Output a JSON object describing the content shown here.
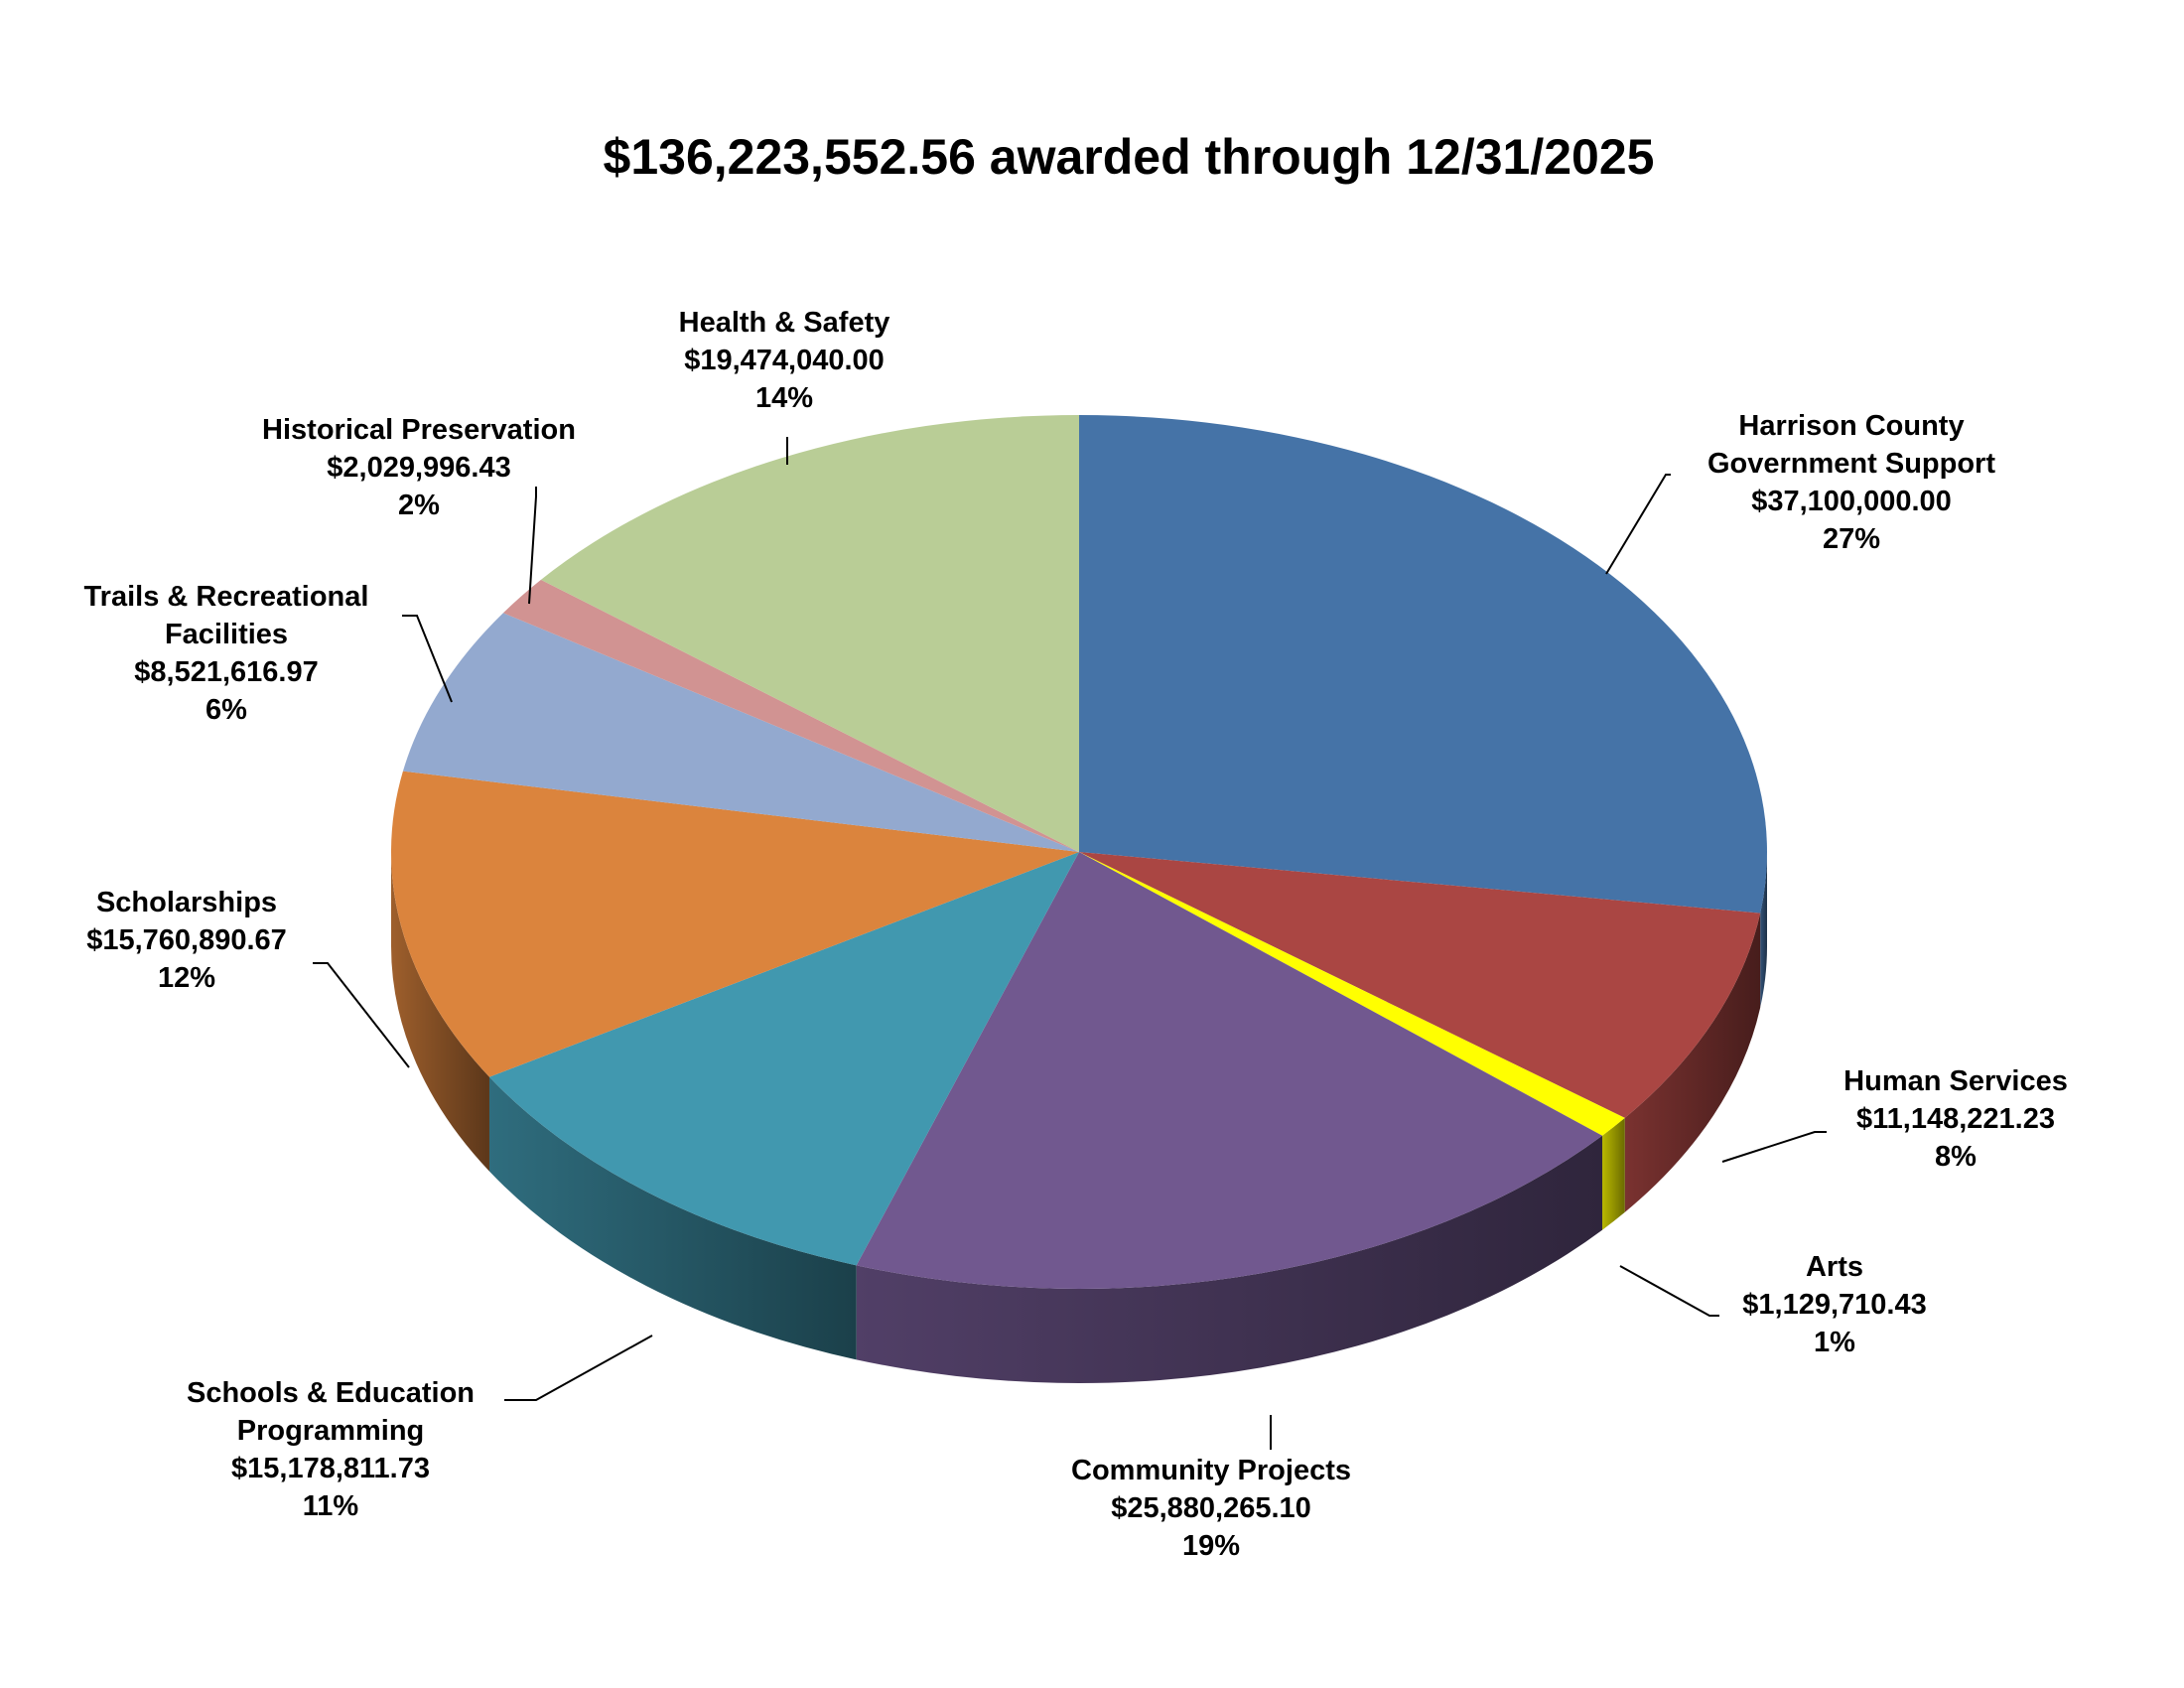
{
  "chart_data": {
    "type": "pie",
    "title": "$136,223,552.56 awarded through 12/31/2025",
    "slices": [
      {
        "name": "Harrison County Government Support",
        "label_lines": [
          "Harrison County",
          "Government Support"
        ],
        "amount": "$37,100,000.00",
        "value": 37100000.0,
        "percent": "27%",
        "color": "#4573A7"
      },
      {
        "name": "Human Services",
        "label_lines": [
          "Human Services"
        ],
        "amount": "$11,148,221.23",
        "value": 11148221.23,
        "percent": "8%",
        "color": "#AA4643"
      },
      {
        "name": "Arts",
        "label_lines": [
          "Arts"
        ],
        "amount": "$1,129,710.43",
        "value": 1129710.43,
        "percent": "1%",
        "color": "#FFFF00"
      },
      {
        "name": "Community Projects",
        "label_lines": [
          "Community Projects"
        ],
        "amount": "$25,880,265.10",
        "value": 25880265.1,
        "percent": "19%",
        "color": "#71588F"
      },
      {
        "name": "Schools & Education Programming",
        "label_lines": [
          "Schools & Education",
          "Programming"
        ],
        "amount": "$15,178,811.73",
        "value": 15178811.73,
        "percent": "11%",
        "color": "#4198AF"
      },
      {
        "name": "Scholarships",
        "label_lines": [
          "Scholarships"
        ],
        "amount": "$15,760,890.67",
        "value": 15760890.67,
        "percent": "12%",
        "color": "#DB843D"
      },
      {
        "name": "Trails & Recreational Facilities",
        "label_lines": [
          "Trails & Recreational",
          "Facilities"
        ],
        "amount": "$8,521,616.97",
        "value": 8521616.97,
        "percent": "6%",
        "color": "#93A9CF"
      },
      {
        "name": "Historical Preservation",
        "label_lines": [
          "Historical Preservation"
        ],
        "amount": "$2,029,996.43",
        "value": 2029996.43,
        "percent": "2%",
        "color": "#D19392"
      },
      {
        "name": "Health & Safety",
        "label_lines": [
          "Health & Safety"
        ],
        "amount": "$19,474,040.00",
        "value": 19474040.0,
        "percent": "14%",
        "color": "#B9CD96"
      }
    ]
  }
}
